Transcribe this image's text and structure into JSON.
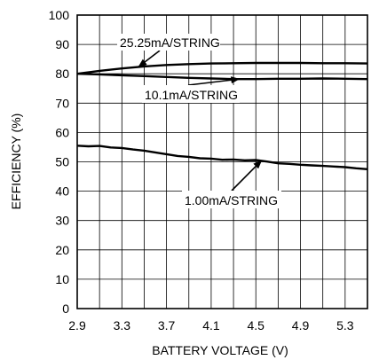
{
  "chart_data": {
    "type": "line",
    "xlabel": "BATTERY VOLTAGE (V)",
    "ylabel": "EFFICIENCY (%)",
    "xlim": [
      2.9,
      5.5
    ],
    "ylim": [
      0,
      100
    ],
    "xticks": [
      2.9,
      3.3,
      3.7,
      4.1,
      4.5,
      4.9,
      5.3
    ],
    "xtick_labels": [
      "2.9",
      "3.3",
      "3.7",
      "4.1",
      "4.5",
      "4.9",
      "5.3"
    ],
    "yticks": [
      0,
      10,
      20,
      30,
      40,
      50,
      60,
      70,
      80,
      90,
      100
    ],
    "ytick_labels": [
      "0",
      "10",
      "20",
      "30",
      "40",
      "50",
      "60",
      "70",
      "80",
      "90",
      "100"
    ],
    "grid": true,
    "figure_id": "MAX8899 toc11",
    "series": [
      {
        "label": "25.25mA/STRING",
        "x": [
          2.9,
          3.1,
          3.3,
          3.5,
          3.7,
          3.9,
          4.1,
          4.3,
          4.5,
          4.7,
          4.9,
          5.1,
          5.3,
          5.5
        ],
        "y": [
          80.0,
          81.0,
          81.8,
          82.5,
          83.0,
          83.3,
          83.5,
          83.6,
          83.7,
          83.7,
          83.7,
          83.6,
          83.6,
          83.5
        ]
      },
      {
        "label": "10.1mA/STRING",
        "x": [
          2.9,
          3.1,
          3.3,
          3.5,
          3.7,
          3.9,
          4.1,
          4.3,
          4.5,
          4.7,
          4.9,
          5.1,
          5.3,
          5.5
        ],
        "y": [
          80.0,
          79.8,
          79.5,
          79.2,
          78.9,
          78.6,
          78.4,
          78.2,
          78.2,
          78.3,
          78.3,
          78.4,
          78.3,
          78.2
        ]
      },
      {
        "label": "1.00mA/STRING",
        "x": [
          2.9,
          3.0,
          3.1,
          3.2,
          3.3,
          3.4,
          3.5,
          3.6,
          3.7,
          3.8,
          3.9,
          4.0,
          4.1,
          4.2,
          4.3,
          4.4,
          4.5,
          4.6,
          4.7,
          4.8,
          4.9,
          5.0,
          5.1,
          5.2,
          5.3,
          5.4,
          5.5
        ],
        "y": [
          55.5,
          55.3,
          55.4,
          54.9,
          54.7,
          54.2,
          53.8,
          53.2,
          52.6,
          52.0,
          51.7,
          51.2,
          51.1,
          50.7,
          50.8,
          50.5,
          50.6,
          50.1,
          49.5,
          49.3,
          49.0,
          48.8,
          48.6,
          48.4,
          48.2,
          47.8,
          47.5
        ]
      }
    ],
    "annotations": [
      {
        "text": "25.25mA/STRING",
        "series": 0
      },
      {
        "text": "10.1mA/STRING",
        "series": 1
      },
      {
        "text": "1.00mA/STRING",
        "series": 2
      }
    ]
  }
}
